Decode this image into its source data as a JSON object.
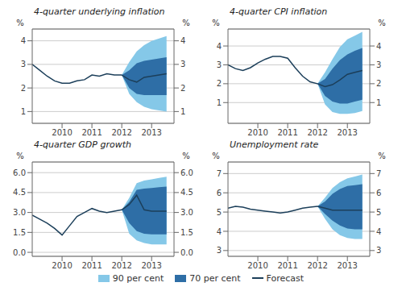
{
  "chart_data": [
    {
      "type": "fan",
      "title": "4-quarter underlying inflation",
      "ylabel": "%",
      "y2label": "%",
      "grid": "y",
      "legend": "bottom",
      "xlim": [
        2009,
        2013.75
      ],
      "xticks": [
        2010,
        2011,
        2012,
        2013
      ],
      "ylim": [
        0.5,
        4.5
      ],
      "yticks": [
        1,
        2,
        3,
        4
      ],
      "y2lim": [
        0.5,
        4.5
      ],
      "y2ticks": [
        1,
        2,
        3,
        4
      ],
      "series": [
        {
          "name": "90 per cent",
          "type": "area",
          "color": "#85c8e8",
          "x": [
            2012.0,
            2012.25,
            2012.5,
            2012.75,
            2013.0,
            2013.25,
            2013.5
          ],
          "lower": [
            2.55,
            1.75,
            1.4,
            1.2,
            1.1,
            1.05,
            1.0
          ],
          "upper": [
            2.55,
            3.1,
            3.55,
            3.82,
            4.0,
            4.1,
            4.2
          ]
        },
        {
          "name": "70 per cent",
          "type": "area",
          "color": "#2e6ea6",
          "x": [
            2012.0,
            2012.25,
            2012.5,
            2012.75,
            2013.0,
            2013.25,
            2013.5
          ],
          "lower": [
            2.55,
            2.0,
            1.75,
            1.7,
            1.7,
            1.7,
            1.7
          ],
          "upper": [
            2.55,
            2.75,
            3.05,
            3.15,
            3.2,
            3.25,
            3.3
          ]
        },
        {
          "type": "line",
          "color": "#1c3f5a",
          "x": [
            2009.0,
            2009.25,
            2009.5,
            2009.75,
            2010.0,
            2010.25,
            2010.5,
            2010.75,
            2011.0,
            2011.25,
            2011.5,
            2011.75,
            2012.0
          ],
          "values": [
            3.0,
            2.75,
            2.5,
            2.3,
            2.2,
            2.2,
            2.3,
            2.35,
            2.55,
            2.5,
            2.6,
            2.55,
            2.55
          ]
        },
        {
          "name": "Forecast",
          "type": "line",
          "color": "#1c3f5a",
          "x": [
            2012.0,
            2012.25,
            2012.5,
            2012.75,
            2013.0,
            2013.25,
            2013.5
          ],
          "values": [
            2.55,
            2.35,
            2.25,
            2.45,
            2.5,
            2.55,
            2.6
          ]
        }
      ]
    },
    {
      "type": "fan",
      "title": "4-quarter CPI inflation",
      "ylabel": "%",
      "y2label": "%",
      "grid": "y",
      "legend": "bottom",
      "xlim": [
        2009,
        2013.75
      ],
      "xticks": [
        2010,
        2011,
        2012,
        2013
      ],
      "ylim": [
        -0.1,
        4.9
      ],
      "yticks": [
        1,
        2,
        3,
        4
      ],
      "y2lim": [
        -0.1,
        4.9
      ],
      "y2ticks": [
        1,
        2,
        3,
        4
      ],
      "series": [
        {
          "name": "90 per cent",
          "type": "area",
          "color": "#85c8e8",
          "x": [
            2012.0,
            2012.25,
            2012.5,
            2012.75,
            2013.0,
            2013.25,
            2013.5
          ],
          "lower": [
            2.0,
            0.9,
            0.5,
            0.4,
            0.4,
            0.45,
            0.55
          ],
          "upper": [
            2.0,
            2.6,
            3.3,
            3.95,
            4.35,
            4.55,
            4.75
          ]
        },
        {
          "name": "70 per cent",
          "type": "area",
          "color": "#2e6ea6",
          "x": [
            2012.0,
            2012.25,
            2012.5,
            2012.75,
            2013.0,
            2013.25,
            2013.5
          ],
          "lower": [
            2.0,
            1.35,
            1.05,
            0.95,
            0.95,
            1.05,
            1.15
          ],
          "upper": [
            2.0,
            2.25,
            2.8,
            3.25,
            3.55,
            3.75,
            3.9
          ]
        },
        {
          "type": "line",
          "color": "#1c3f5a",
          "x": [
            2009.0,
            2009.25,
            2009.5,
            2009.75,
            2010.0,
            2010.25,
            2010.5,
            2010.75,
            2011.0,
            2011.25,
            2011.5,
            2011.75,
            2012.0
          ],
          "values": [
            3.0,
            2.8,
            2.7,
            2.85,
            3.1,
            3.3,
            3.45,
            3.45,
            3.35,
            2.85,
            2.4,
            2.1,
            2.0
          ]
        },
        {
          "name": "Forecast",
          "type": "line",
          "color": "#1c3f5a",
          "x": [
            2012.0,
            2012.25,
            2012.5,
            2012.75,
            2013.0,
            2013.25,
            2013.5
          ],
          "values": [
            2.0,
            1.85,
            1.95,
            2.2,
            2.5,
            2.6,
            2.7
          ]
        }
      ]
    },
    {
      "type": "fan",
      "title": "4-quarter GDP growth",
      "ylabel": "%",
      "y2label": "%",
      "grid": "y",
      "legend": "bottom",
      "xlim": [
        2009,
        2013.75
      ],
      "xticks": [
        2010,
        2011,
        2012,
        2013
      ],
      "ylim": [
        -0.3,
        6.8
      ],
      "yticks": [
        {
          "value": 0,
          "label": "0.0"
        },
        1.5,
        {
          "value": 3,
          "label": "3.0"
        },
        4.5,
        {
          "value": 6,
          "label": "6.0"
        }
      ],
      "y2lim": [
        -0.3,
        6.8
      ],
      "y2ticks": [
        {
          "value": 0,
          "label": "0.0"
        },
        1.5,
        {
          "value": 3,
          "label": "3.0"
        },
        4.5,
        {
          "value": 6,
          "label": "6.0"
        }
      ],
      "series": [
        {
          "name": "90 per cent",
          "type": "area",
          "color": "#85c8e8",
          "x": [
            2012.0,
            2012.25,
            2012.5,
            2012.75,
            2013.0,
            2013.25,
            2013.5
          ],
          "lower": [
            3.2,
            1.4,
            0.9,
            0.7,
            0.6,
            0.6,
            0.6
          ],
          "upper": [
            3.2,
            4.1,
            5.2,
            5.4,
            5.5,
            5.6,
            5.7
          ]
        },
        {
          "name": "70 per cent",
          "type": "area",
          "color": "#2e6ea6",
          "x": [
            2012.0,
            2012.25,
            2012.5,
            2012.75,
            2013.0,
            2013.25,
            2013.5
          ],
          "lower": [
            3.2,
            2.2,
            1.6,
            1.4,
            1.35,
            1.35,
            1.35
          ],
          "upper": [
            3.2,
            3.8,
            4.7,
            4.8,
            4.85,
            4.9,
            4.95
          ]
        },
        {
          "type": "line",
          "color": "#1c3f5a",
          "x": [
            2009.0,
            2009.25,
            2009.5,
            2009.75,
            2010.0,
            2010.25,
            2010.5,
            2010.75,
            2011.0,
            2011.25,
            2011.5,
            2011.75,
            2012.0
          ],
          "values": [
            2.8,
            2.5,
            2.2,
            1.8,
            1.3,
            2.0,
            2.7,
            3.0,
            3.3,
            3.1,
            3.0,
            3.1,
            3.2
          ]
        },
        {
          "name": "Forecast",
          "type": "line",
          "color": "#1c3f5a",
          "x": [
            2012.0,
            2012.25,
            2012.5,
            2012.75,
            2013.0,
            2013.25,
            2013.5
          ],
          "values": [
            3.2,
            3.6,
            4.3,
            3.2,
            3.1,
            3.1,
            3.1
          ]
        }
      ]
    },
    {
      "type": "fan",
      "title": "Unemployment rate",
      "ylabel": "%",
      "y2label": "%",
      "grid": "y",
      "legend": "bottom",
      "xlim": [
        2009,
        2013.75
      ],
      "xticks": [
        2010,
        2011,
        2012,
        2013
      ],
      "ylim": [
        2.7,
        7.6
      ],
      "yticks": [
        3,
        4,
        5,
        6,
        7
      ],
      "y2lim": [
        2.7,
        7.6
      ],
      "y2ticks": [
        3,
        4,
        5,
        6,
        7
      ],
      "series": [
        {
          "name": "90 per cent",
          "type": "area",
          "color": "#85c8e8",
          "x": [
            2012.0,
            2012.25,
            2012.5,
            2012.75,
            2013.0,
            2013.25,
            2013.5
          ],
          "lower": [
            5.3,
            4.65,
            4.1,
            3.8,
            3.65,
            3.6,
            3.6
          ],
          "upper": [
            5.3,
            5.75,
            6.25,
            6.55,
            6.75,
            6.85,
            6.95
          ]
        },
        {
          "name": "70 per cent",
          "type": "area",
          "color": "#2e6ea6",
          "x": [
            2012.0,
            2012.25,
            2012.5,
            2012.75,
            2013.0,
            2013.25,
            2013.5
          ],
          "lower": [
            5.3,
            4.9,
            4.55,
            4.3,
            4.15,
            4.1,
            4.1
          ],
          "upper": [
            5.3,
            5.55,
            5.95,
            6.2,
            6.35,
            6.4,
            6.45
          ]
        },
        {
          "type": "line",
          "color": "#1c3f5a",
          "x": [
            2009.0,
            2009.25,
            2009.5,
            2009.75,
            2010.0,
            2010.25,
            2010.5,
            2010.75,
            2011.0,
            2011.25,
            2011.5,
            2011.75,
            2012.0
          ],
          "values": [
            5.2,
            5.3,
            5.25,
            5.15,
            5.1,
            5.05,
            5.0,
            4.95,
            5.0,
            5.1,
            5.2,
            5.25,
            5.3
          ]
        },
        {
          "name": "Forecast",
          "type": "line",
          "color": "#1c3f5a",
          "x": [
            2012.0,
            2012.25,
            2012.5,
            2012.75,
            2013.0,
            2013.25,
            2013.5
          ],
          "values": [
            5.3,
            5.2,
            5.1,
            5.1,
            5.1,
            5.1,
            5.1
          ]
        }
      ]
    }
  ]
}
